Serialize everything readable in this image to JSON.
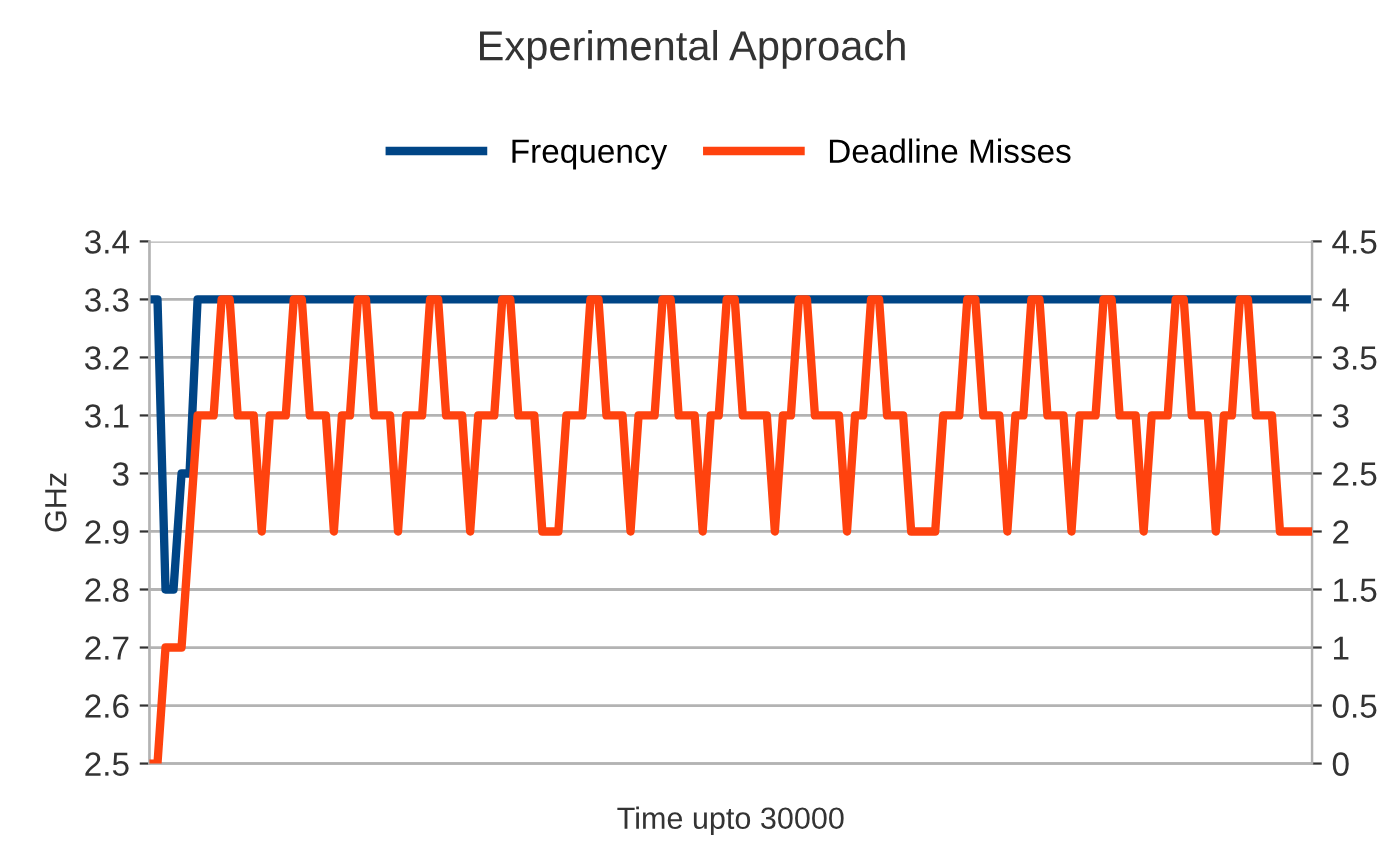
{
  "chart_data": {
    "type": "line",
    "title": "Experimental Approach",
    "xlabel": "Time upto 30000",
    "ylabel": "GHz",
    "categories": [
      null,
      null,
      null,
      null,
      null,
      null,
      null,
      null,
      null,
      null,
      null,
      null,
      null,
      null,
      null,
      null,
      null,
      null,
      null,
      null,
      null,
      null,
      null,
      null,
      null,
      null,
      null,
      null,
      null,
      null,
      null,
      null,
      null,
      null,
      null,
      null,
      null,
      null,
      null,
      null,
      null,
      null,
      null,
      null,
      null,
      null,
      null,
      null,
      null,
      null,
      null,
      null,
      null,
      null,
      null,
      null,
      null,
      null,
      null,
      null,
      null,
      null,
      null,
      null,
      null,
      null,
      null,
      null,
      null,
      null,
      null,
      null,
      null,
      null,
      null,
      null,
      null,
      null,
      null,
      null,
      null,
      null,
      null,
      null,
      null,
      null,
      null,
      null,
      null,
      null,
      null,
      null,
      null,
      null,
      null,
      null,
      null,
      null,
      null,
      null,
      null,
      null,
      null,
      null,
      null,
      null,
      null,
      null,
      null,
      null,
      null,
      null,
      null,
      null,
      null,
      null,
      null,
      null,
      null,
      null,
      null,
      null,
      null,
      null,
      null,
      null,
      null,
      null,
      null,
      null,
      null,
      null,
      null,
      null,
      null,
      null,
      null,
      null,
      null,
      null,
      null,
      null,
      null,
      null,
      null,
      null
    ],
    "series": [
      {
        "name": "Frequency",
        "color": "#004586",
        "values": [
          3.3,
          3.3,
          2.8,
          2.8,
          3,
          3,
          3.3,
          3.3,
          3.3,
          3.3,
          3.3,
          3.3,
          3.3,
          3.3,
          3.3,
          3.3,
          3.3,
          3.3,
          3.3,
          3.3,
          3.3,
          3.3,
          3.3,
          3.3,
          3.3,
          3.3,
          3.3,
          3.3,
          3.3,
          3.3,
          3.3,
          3.3,
          3.3,
          3.3,
          3.3,
          3.3,
          3.3,
          3.3,
          3.3,
          3.3,
          3.3,
          3.3,
          3.3,
          3.3,
          3.3,
          3.3,
          3.3,
          3.3,
          3.3,
          3.3,
          3.3,
          3.3,
          3.3,
          3.3,
          3.3,
          3.3,
          3.3,
          3.3,
          3.3,
          3.3,
          3.3,
          3.3,
          3.3,
          3.3,
          3.3,
          3.3,
          3.3,
          3.3,
          3.3,
          3.3,
          3.3,
          3.3,
          3.3,
          3.3,
          3.3,
          3.3,
          3.3,
          3.3,
          3.3,
          3.3,
          3.3,
          3.3,
          3.3,
          3.3,
          3.3,
          3.3,
          3.3,
          3.3,
          3.3,
          3.3,
          3.3,
          3.3,
          3.3,
          3.3,
          3.3,
          3.3,
          3.3,
          3.3,
          3.3,
          3.3,
          3.3,
          3.3,
          3.3,
          3.3,
          3.3,
          3.3,
          3.3,
          3.3,
          3.3,
          3.3,
          3.3,
          3.3,
          3.3,
          3.3,
          3.3,
          3.3,
          3.3,
          3.3,
          3.3,
          3.3,
          3.3,
          3.3,
          3.3,
          3.3,
          3.3,
          3.3,
          3.3,
          3.3,
          3.3,
          3.3,
          3.3,
          3.3,
          3.3,
          3.3,
          3.3,
          3.3,
          3.3,
          3.3,
          3.3,
          3.3,
          3.3,
          3.3,
          3.3,
          3.3,
          3.3,
          3.3
        ]
      },
      {
        "name": "Deadline Misses",
        "color": "#ff420e",
        "axis": "y2",
        "values": [
          0,
          0,
          1,
          1,
          1,
          2,
          3,
          3,
          3,
          4,
          4,
          3,
          3,
          3,
          2,
          3,
          3,
          3,
          4,
          4,
          3,
          3,
          3,
          2,
          3,
          3,
          4,
          4,
          3,
          3,
          3,
          2,
          3,
          3,
          3,
          4,
          4,
          3,
          3,
          3,
          2,
          3,
          3,
          3,
          4,
          4,
          3,
          3,
          3,
          2,
          2,
          2,
          3,
          3,
          3,
          4,
          4,
          3,
          3,
          3,
          2,
          3,
          3,
          3,
          4,
          4,
          3,
          3,
          3,
          2,
          3,
          3,
          4,
          4,
          3,
          3,
          3,
          3,
          2,
          3,
          3,
          4,
          4,
          3,
          3,
          3,
          3,
          2,
          3,
          3,
          4,
          4,
          3,
          3,
          3,
          2,
          2,
          2,
          2,
          3,
          3,
          3,
          4,
          4,
          3,
          3,
          3,
          2,
          3,
          3,
          4,
          4,
          3,
          3,
          3,
          2,
          3,
          3,
          3,
          4,
          4,
          3,
          3,
          3,
          2,
          3,
          3,
          3,
          4,
          4,
          3,
          3,
          3,
          2,
          3,
          3,
          4,
          4,
          3,
          3,
          3,
          2,
          2,
          2,
          2,
          2
        ]
      }
    ],
    "ylim": [
      2.5,
      3.4
    ],
    "yticks": [
      2.5,
      2.6,
      2.7,
      2.8,
      2.9,
      3,
      3.1,
      3.2,
      3.3,
      3.4
    ],
    "y2lim": [
      0,
      4.5
    ],
    "y2ticks": [
      0,
      0.5,
      1,
      1.5,
      2,
      2.5,
      3,
      3.5,
      4,
      4.5
    ],
    "grid": "y",
    "legend": "top",
    "marker": "none",
    "line_style": "solid"
  }
}
